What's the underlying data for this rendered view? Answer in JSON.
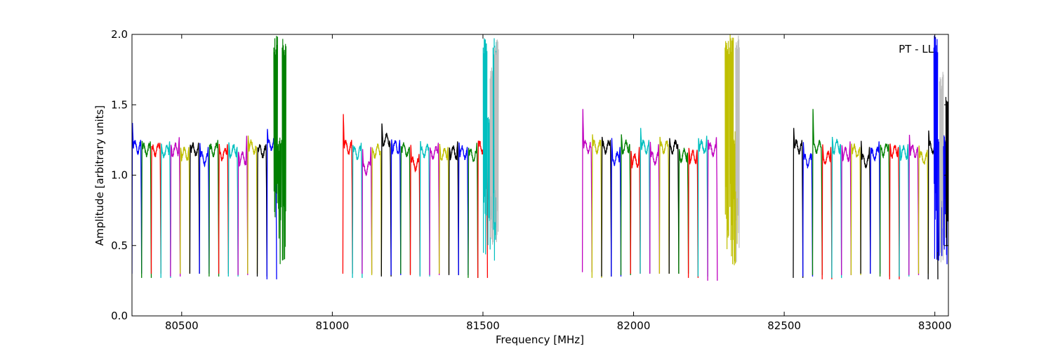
{
  "chart_data": {
    "type": "line",
    "title": "",
    "xlabel": "Frequency [MHz]",
    "ylabel": "Amplitude [arbitrary units]",
    "xlim": [
      80335,
      83045
    ],
    "ylim": [
      0.0,
      2.0
    ],
    "xticks": [
      80500,
      81000,
      81500,
      82000,
      82500,
      83000
    ],
    "xtick_labels": [
      "80500",
      "81000",
      "81500",
      "82000",
      "82500",
      "83000"
    ],
    "yticks": [
      0.0,
      0.5,
      1.0,
      1.5,
      2.0
    ],
    "ytick_labels": [
      "0.0",
      "0.5",
      "1.0",
      "1.5",
      "2.0"
    ],
    "grid": false,
    "annotation": "PT - LL",
    "annotation_position": "top-right",
    "color_cycle": [
      "#0000ff",
      "#008000",
      "#ff0000",
      "#00bfbf",
      "#bf00bf",
      "#bfbf00",
      "#000000"
    ],
    "blocks": [
      {
        "channel_width_mhz": 32,
        "channels": [
          {
            "start": 80335,
            "color": "#0000ff",
            "peak_left": 1.39,
            "level": 1.2,
            "peak_right": 1.25,
            "min": 0.3
          },
          {
            "start": 80367,
            "color": "#008000",
            "peak_left": 1.25,
            "level": 1.18,
            "peak_right": 1.24,
            "min": 0.27
          },
          {
            "start": 80399,
            "color": "#ff0000",
            "peak_left": 1.21,
            "level": 1.18,
            "peak_right": 1.23,
            "min": 0.3
          },
          {
            "start": 80431,
            "color": "#00bfbf",
            "peak_left": 1.23,
            "level": 1.17,
            "peak_right": 1.24,
            "min": 0.27
          },
          {
            "start": 80463,
            "color": "#bf00bf",
            "peak_left": 1.22,
            "level": 1.18,
            "peak_right": 1.27,
            "min": 0.28
          },
          {
            "start": 80495,
            "color": "#bfbf00",
            "peak_left": 1.2,
            "level": 1.15,
            "peak_right": 1.2,
            "min": 0.3
          },
          {
            "start": 80527,
            "color": "#000000",
            "peak_left": 1.22,
            "level": 1.18,
            "peak_right": 1.23,
            "min": 0.3
          },
          {
            "start": 80559,
            "color": "#0000ff",
            "peak_left": 1.24,
            "level": 1.12,
            "peak_right": 1.2,
            "min": 0.3
          },
          {
            "start": 80591,
            "color": "#008000",
            "peak_left": 1.22,
            "level": 1.18,
            "peak_right": 1.25,
            "min": 0.28
          },
          {
            "start": 80623,
            "color": "#ff0000",
            "peak_left": 1.23,
            "level": 1.15,
            "peak_right": 1.22,
            "min": 0.3
          },
          {
            "start": 80655,
            "color": "#00bfbf",
            "peak_left": 1.24,
            "level": 1.17,
            "peak_right": 1.2,
            "min": 0.28
          },
          {
            "start": 80687,
            "color": "#bf00bf",
            "peak_left": 1.17,
            "level": 1.12,
            "peak_right": 1.28,
            "min": 0.29
          },
          {
            "start": 80719,
            "color": "#bfbf00",
            "peak_left": 1.29,
            "level": 1.2,
            "peak_right": 1.2,
            "min": 0.3
          },
          {
            "start": 80751,
            "color": "#000000",
            "peak_left": 1.2,
            "level": 1.17,
            "peak_right": 1.22,
            "min": 0.28
          },
          {
            "start": 80783,
            "color": "#0000ff",
            "peak_left": 1.34,
            "level": 1.22,
            "peak_right": 1.28,
            "min": 0.26
          }
        ]
      },
      {
        "channel_width_mhz": 32,
        "channels": [
          {
            "start": 81035,
            "color": "#ff0000",
            "peak_left": 1.46,
            "level": 1.2,
            "peak_right": 1.25,
            "min": 0.3
          },
          {
            "start": 81067,
            "color": "#00bfbf",
            "peak_left": 1.22,
            "level": 1.16,
            "peak_right": 1.23,
            "min": 0.27
          },
          {
            "start": 81099,
            "color": "#bf00bf",
            "peak_left": 1.2,
            "level": 1.05,
            "peak_right": 1.2,
            "min": 0.3
          },
          {
            "start": 81131,
            "color": "#bfbf00",
            "peak_left": 1.2,
            "level": 1.17,
            "peak_right": 1.17,
            "min": 0.29
          },
          {
            "start": 81163,
            "color": "#000000",
            "peak_left": 1.38,
            "level": 1.25,
            "peak_right": 1.22,
            "min": 0.28
          },
          {
            "start": 81195,
            "color": "#0000ff",
            "peak_left": 1.26,
            "level": 1.2,
            "peak_right": 1.25,
            "min": 0.29
          },
          {
            "start": 81227,
            "color": "#008000",
            "peak_left": 1.21,
            "level": 1.18,
            "peak_right": 1.2,
            "min": 0.3
          },
          {
            "start": 81259,
            "color": "#ff0000",
            "peak_left": 1.23,
            "level": 1.08,
            "peak_right": 1.15,
            "min": 0.29
          },
          {
            "start": 81291,
            "color": "#00bfbf",
            "peak_left": 1.25,
            "level": 1.17,
            "peak_right": 1.2,
            "min": 0.28
          },
          {
            "start": 81323,
            "color": "#bf00bf",
            "peak_left": 1.2,
            "level": 1.16,
            "peak_right": 1.23,
            "min": 0.29
          },
          {
            "start": 81355,
            "color": "#bfbf00",
            "peak_left": 1.23,
            "level": 1.15,
            "peak_right": 1.2,
            "min": 0.3
          },
          {
            "start": 81387,
            "color": "#000000",
            "peak_left": 1.2,
            "level": 1.16,
            "peak_right": 1.24,
            "min": 0.29
          },
          {
            "start": 81419,
            "color": "#0000ff",
            "peak_left": 1.24,
            "level": 1.16,
            "peak_right": 1.2,
            "min": 0.29
          },
          {
            "start": 81451,
            "color": "#008000",
            "peak_left": 1.2,
            "level": 1.14,
            "peak_right": 1.23,
            "min": 0.27
          },
          {
            "start": 81483,
            "color": "#ff0000",
            "peak_left": 1.25,
            "level": 1.2,
            "peak_right": 1.22,
            "min": 0.27
          }
        ]
      },
      {
        "channel_width_mhz": 32,
        "channels": [
          {
            "start": 81830,
            "color": "#bf00bf",
            "peak_left": 1.5,
            "level": 1.2,
            "peak_right": 1.2,
            "min": 0.31
          },
          {
            "start": 81862,
            "color": "#bfbf00",
            "peak_left": 1.3,
            "level": 1.2,
            "peak_right": 1.25,
            "min": 0.27
          },
          {
            "start": 81894,
            "color": "#000000",
            "peak_left": 1.28,
            "level": 1.2,
            "peak_right": 1.25,
            "min": 0.28
          },
          {
            "start": 81926,
            "color": "#0000ff",
            "peak_left": 1.28,
            "level": 1.12,
            "peak_right": 1.2,
            "min": 0.28
          },
          {
            "start": 81958,
            "color": "#008000",
            "peak_left": 1.3,
            "level": 1.2,
            "peak_right": 1.22,
            "min": 0.29
          },
          {
            "start": 81990,
            "color": "#ff0000",
            "peak_left": 1.18,
            "level": 1.1,
            "peak_right": 1.2,
            "min": 0.3
          },
          {
            "start": 82022,
            "color": "#00bfbf",
            "peak_left": 1.35,
            "level": 1.2,
            "peak_right": 1.25,
            "min": 0.3
          },
          {
            "start": 82054,
            "color": "#bf00bf",
            "peak_left": 1.25,
            "level": 1.12,
            "peak_right": 1.22,
            "min": 0.3
          },
          {
            "start": 82086,
            "color": "#bfbf00",
            "peak_left": 1.28,
            "level": 1.2,
            "peak_right": 1.22,
            "min": 0.3
          },
          {
            "start": 82118,
            "color": "#000000",
            "peak_left": 1.27,
            "level": 1.2,
            "peak_right": 1.22,
            "min": 0.3
          },
          {
            "start": 82150,
            "color": "#008000",
            "peak_left": 1.19,
            "level": 1.14,
            "peak_right": 1.16,
            "min": 0.3
          },
          {
            "start": 82182,
            "color": "#ff0000",
            "peak_left": 1.2,
            "level": 1.13,
            "peak_right": 1.18,
            "min": 0.27
          },
          {
            "start": 82214,
            "color": "#00bfbf",
            "peak_left": 1.27,
            "level": 1.2,
            "peak_right": 1.28,
            "min": 0.28
          },
          {
            "start": 82246,
            "color": "#bf00bf",
            "peak_left": 1.26,
            "level": 1.18,
            "peak_right": 1.27,
            "min": 0.25
          }
        ]
      },
      {
        "channel_width_mhz": 32,
        "channels": [
          {
            "start": 82530,
            "color": "#000000",
            "peak_left": 1.35,
            "level": 1.2,
            "peak_right": 1.25,
            "min": 0.27
          },
          {
            "start": 82562,
            "color": "#0000ff",
            "peak_left": 1.25,
            "level": 1.1,
            "peak_right": 1.15,
            "min": 0.28
          },
          {
            "start": 82594,
            "color": "#008000",
            "peak_left": 1.5,
            "level": 1.2,
            "peak_right": 1.2,
            "min": 0.29
          },
          {
            "start": 82626,
            "color": "#ff0000",
            "peak_left": 1.23,
            "level": 1.12,
            "peak_right": 1.2,
            "min": 0.26
          },
          {
            "start": 82658,
            "color": "#00bfbf",
            "peak_left": 1.28,
            "level": 1.2,
            "peak_right": 1.22,
            "min": 0.27
          },
          {
            "start": 82690,
            "color": "#bf00bf",
            "peak_left": 1.22,
            "level": 1.15,
            "peak_right": 1.24,
            "min": 0.29
          },
          {
            "start": 82722,
            "color": "#bfbf00",
            "peak_left": 1.23,
            "level": 1.17,
            "peak_right": 1.2,
            "min": 0.29
          },
          {
            "start": 82754,
            "color": "#000000",
            "peak_left": 1.26,
            "level": 1.1,
            "peak_right": 1.2,
            "min": 0.3
          },
          {
            "start": 82786,
            "color": "#0000ff",
            "peak_left": 1.2,
            "level": 1.15,
            "peak_right": 1.24,
            "min": 0.3
          },
          {
            "start": 82818,
            "color": "#008000",
            "peak_left": 1.22,
            "level": 1.18,
            "peak_right": 1.22,
            "min": 0.28
          },
          {
            "start": 82850,
            "color": "#ff0000",
            "peak_left": 1.23,
            "level": 1.17,
            "peak_right": 1.2,
            "min": 0.26
          },
          {
            "start": 82882,
            "color": "#00bfbf",
            "peak_left": 1.22,
            "level": 1.16,
            "peak_right": 1.22,
            "min": 0.28
          },
          {
            "start": 82914,
            "color": "#bf00bf",
            "peak_left": 1.3,
            "level": 1.17,
            "peak_right": 1.2,
            "min": 0.29
          },
          {
            "start": 82946,
            "color": "#bfbf00",
            "peak_left": 1.22,
            "level": 1.12,
            "peak_right": 1.18,
            "min": 0.3
          },
          {
            "start": 82978,
            "color": "#000000",
            "peak_left": 1.33,
            "level": 1.2,
            "peak_right": 1.28,
            "min": 0.26
          }
        ]
      }
    ],
    "edge_spikes": [
      {
        "x": 80812,
        "color": "#008000",
        "peak": 2.0
      },
      {
        "x": 80825,
        "color": "#008000",
        "peak": 1.3
      },
      {
        "x": 80840,
        "color": "#008000",
        "peak": 2.0
      },
      {
        "x": 81507,
        "color": "#00bfbf",
        "peak": 2.0
      },
      {
        "x": 81522,
        "color": "#00bfbf",
        "peak": 1.5
      },
      {
        "x": 81530,
        "color": "#bfbfbf",
        "peak": 1.78
      },
      {
        "x": 81540,
        "color": "#00bfbf",
        "peak": 2.0
      },
      {
        "x": 81545,
        "color": "#bfbfbf",
        "peak": 2.0
      },
      {
        "x": 82310,
        "color": "#bfbf00",
        "peak": 2.0
      },
      {
        "x": 82325,
        "color": "#bfbf00",
        "peak": 2.0
      },
      {
        "x": 82338,
        "color": "#bfbf00",
        "peak": 1.35
      },
      {
        "x": 82345,
        "color": "#bfbfbf",
        "peak": 2.0
      },
      {
        "x": 83003,
        "color": "#0000ff",
        "peak": 2.0
      },
      {
        "x": 83018,
        "color": "#0000ff",
        "peak": 1.35
      },
      {
        "x": 83022,
        "color": "#bfbfbf",
        "peak": 1.76
      },
      {
        "x": 83035,
        "color": "#0000ff",
        "peak": 1.3
      },
      {
        "x": 83043,
        "color": "#000000",
        "peak": 1.65
      }
    ]
  }
}
